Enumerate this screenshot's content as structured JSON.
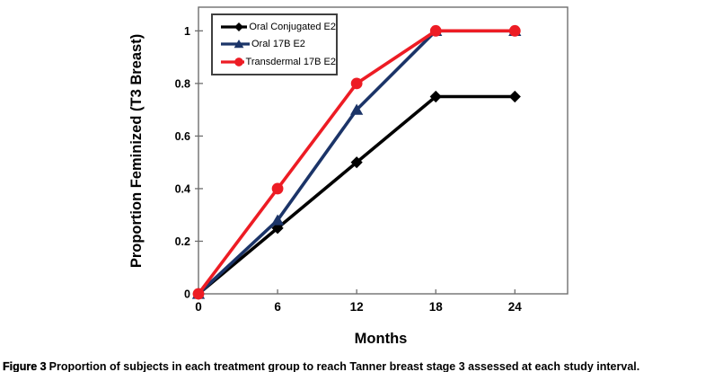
{
  "chart_data": {
    "type": "line",
    "title": "",
    "xlabel": "Months",
    "ylabel": "Proportion Feminized (T3 Breast)",
    "x": [
      0,
      6,
      12,
      18,
      24
    ],
    "xticks": [
      0,
      6,
      12,
      18,
      24
    ],
    "yticks": [
      0,
      0.2,
      0.4,
      0.6,
      0.8,
      1
    ],
    "xlim": [
      0,
      28
    ],
    "ylim": [
      0,
      1.09
    ],
    "grid": false,
    "legend_position": "top-left-inside",
    "frame_color": "#6e6e6e",
    "series": [
      {
        "name": "Oral Conjugated E2",
        "marker": "diamond",
        "color": "#000000",
        "values": [
          0,
          0.25,
          0.5,
          0.75,
          0.75
        ]
      },
      {
        "name": "Oral 17B E2",
        "marker": "triangle",
        "color": "#1b3468",
        "values": [
          0,
          0.28,
          0.7,
          1.0,
          1.0
        ]
      },
      {
        "name": "Transdermal 17B E2",
        "marker": "circle",
        "color": "#ed1c24",
        "values": [
          0,
          0.4,
          0.8,
          1.0,
          1.0
        ]
      }
    ]
  },
  "caption": {
    "label": "Figure 3",
    "text": "Proportion of subjects in each treatment group to reach Tanner breast stage 3 assessed at each study interval."
  }
}
